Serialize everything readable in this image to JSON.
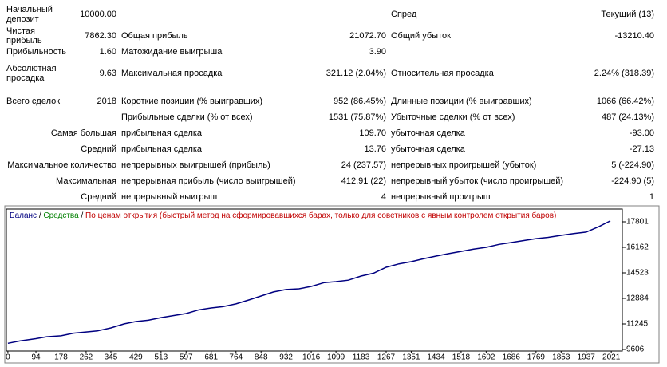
{
  "stats": {
    "rows": [
      [
        "Начальный депозит",
        "10000.00",
        null,
        null,
        "Спред",
        "Текущий (13)"
      ],
      [
        "Чистая прибыль",
        "7862.30",
        "Общая прибыль",
        "21072.70",
        "Общий убыток",
        "-13210.40"
      ],
      [
        "Прибыльность",
        "1.60",
        "Матожидание выигрыша",
        "3.90",
        null,
        null
      ],
      [
        "Абсолютная просадка",
        "9.63",
        "Максимальная просадка",
        "321.12 (2.04%)",
        "Относительная просадка",
        "2.24% (318.39)"
      ],
      [
        "Всего сделок",
        "2018",
        "Короткие позиции (% выигравших)",
        "952 (86.45%)",
        "Длинные позиции (% выигравших)",
        "1066 (66.42%)"
      ],
      [
        null,
        null,
        "Прибыльные сделки (% от всех)",
        "1531 (75.87%)",
        "Убыточные сделки (% от всех)",
        "487 (24.13%)"
      ],
      [
        "Самая большая",
        "прибыльная сделка",
        "109.70",
        "убыточная сделка",
        "-93.00"
      ],
      [
        "Средний",
        "прибыльная сделка",
        "13.76",
        "убыточная сделка",
        "-27.13"
      ],
      [
        "Максимальное количество",
        "непрерывных выигрышей (прибыль)",
        "24 (237.57)",
        "непрерывных проигрышей (убыток)",
        "5 (-224.90)"
      ],
      [
        "Максимальная",
        "непрерывная прибыль (число выигрышей)",
        "412.91 (22)",
        "непрерывный убыток (число проигрышей)",
        "-224.90 (5)"
      ],
      [
        "Средний",
        "непрерывный выигрыш",
        "4",
        "непрерывный проигрыш",
        "1"
      ]
    ]
  },
  "chart_data": {
    "type": "line",
    "legend": [
      {
        "text": "Баланс",
        "color": "#000080"
      },
      {
        "text": " / ",
        "color": "#000000"
      },
      {
        "text": "Средства",
        "color": "#008000"
      },
      {
        "text": " / ",
        "color": "#000000"
      },
      {
        "text": "По ценам открытия (быстрый метод на сформировавшихся барах, только для советников с явным контролем открытия баров)",
        "color": "#c00000"
      }
    ],
    "x": [
      0,
      40,
      94,
      130,
      178,
      220,
      262,
      300,
      345,
      390,
      429,
      470,
      513,
      560,
      597,
      640,
      681,
      720,
      764,
      810,
      848,
      890,
      932,
      975,
      1016,
      1060,
      1099,
      1140,
      1183,
      1225,
      1267,
      1310,
      1351,
      1390,
      1434,
      1475,
      1518,
      1560,
      1602,
      1645,
      1686,
      1730,
      1769,
      1810,
      1853,
      1895,
      1937,
      1980,
      2018
    ],
    "series": [
      {
        "name": "Баланс",
        "color": "#000080",
        "values": [
          10000,
          10150,
          10300,
          10420,
          10480,
          10650,
          10730,
          10800,
          10990,
          11250,
          11400,
          11480,
          11650,
          11800,
          11910,
          12150,
          12270,
          12350,
          12530,
          12800,
          13040,
          13300,
          13450,
          13500,
          13650,
          13900,
          13960,
          14050,
          14320,
          14500,
          14880,
          15100,
          15240,
          15420,
          15600,
          15750,
          15900,
          16050,
          16160,
          16350,
          16470,
          16600,
          16720,
          16800,
          16930,
          17050,
          17140,
          17500,
          17862
        ]
      }
    ],
    "xlim": [
      -5,
      2058
    ],
    "ylim": [
      9504,
      18620
    ],
    "xticks": [
      0,
      94,
      178,
      262,
      345,
      429,
      513,
      597,
      681,
      764,
      848,
      932,
      1016,
      1099,
      1183,
      1267,
      1351,
      1434,
      1518,
      1602,
      1686,
      1769,
      1853,
      1937,
      2021
    ],
    "yticks": [
      9606,
      11245,
      12884,
      14523,
      16162,
      17801
    ],
    "grid": false
  }
}
